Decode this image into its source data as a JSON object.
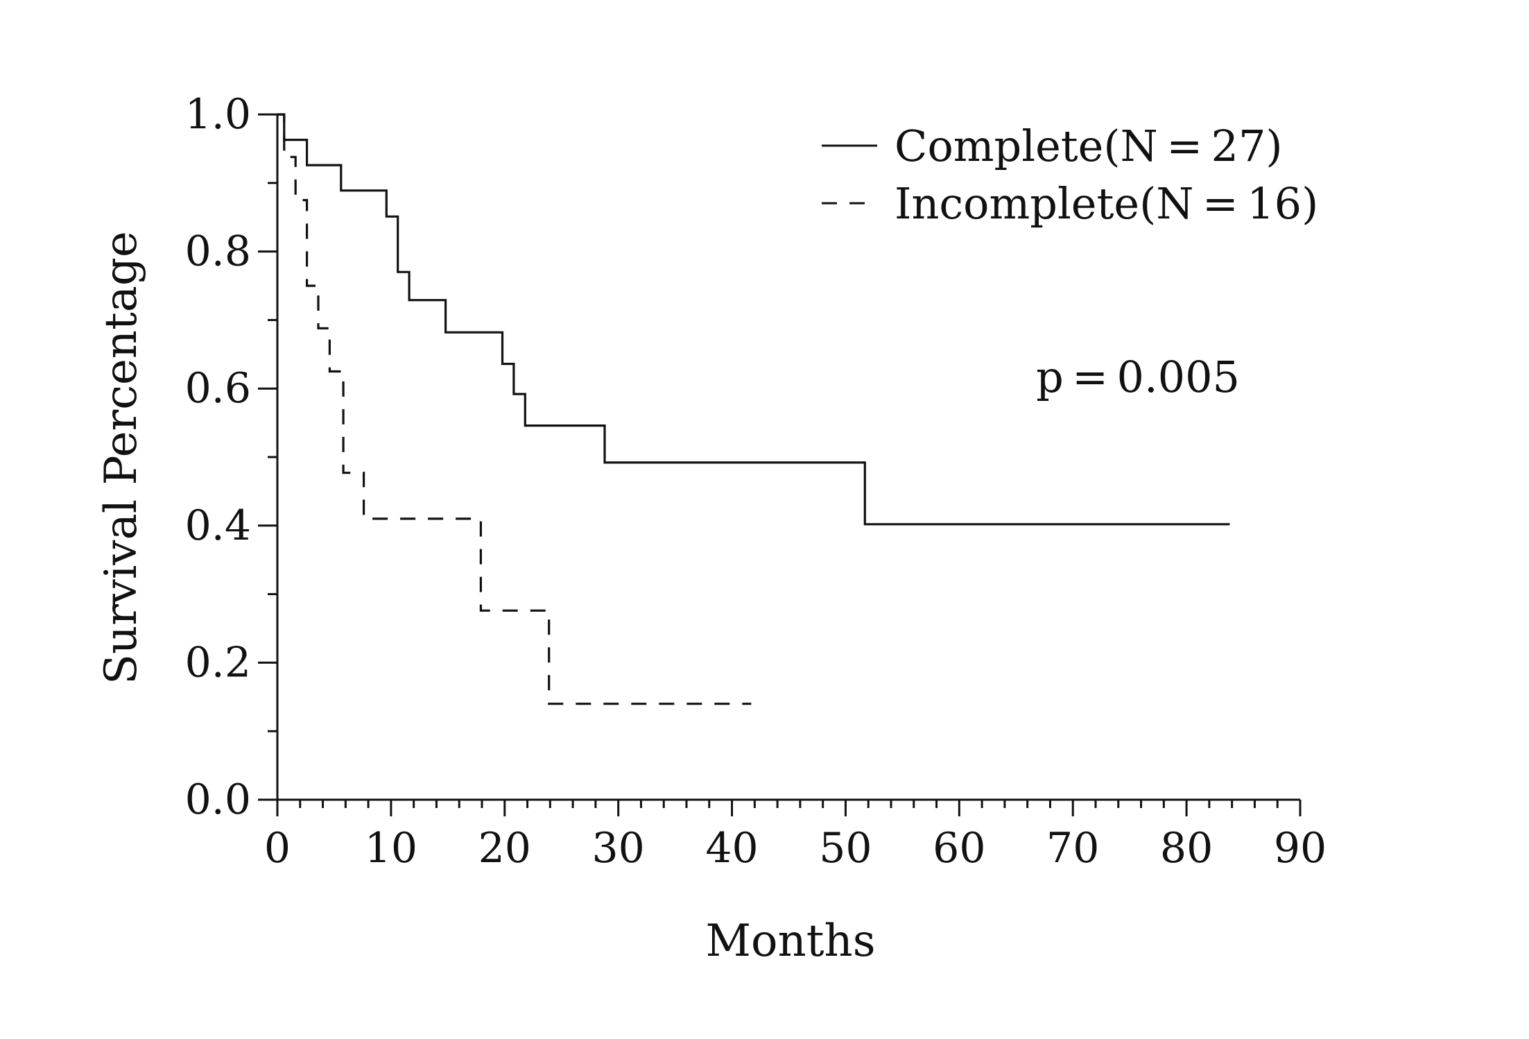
{
  "chart_data": {
    "type": "line",
    "style": "kaplan-meier step plot",
    "xlabel": "Months",
    "ylabel": "Survival Percentage",
    "xlim": [
      0,
      90
    ],
    "ylim": [
      0.0,
      1.0
    ],
    "x_ticks": [
      "0",
      "10",
      "20",
      "30",
      "40",
      "50",
      "60",
      "70",
      "80",
      "90"
    ],
    "y_ticks": [
      "0.0",
      "0.2",
      "0.4",
      "0.6",
      "0.8",
      "1.0"
    ],
    "grid": false,
    "legend_position": "top-right",
    "annotation": "p = 0.005",
    "colors": {
      "line": "#111111",
      "background": "#ffffff"
    },
    "series": [
      {
        "name": "Complete(N = 27)",
        "line_style": "solid",
        "steps": [
          [
            0,
            1.0
          ],
          [
            0.6,
            1.0
          ],
          [
            0.6,
            0.963
          ],
          [
            2.6,
            0.963
          ],
          [
            2.6,
            0.926
          ],
          [
            5.6,
            0.926
          ],
          [
            5.6,
            0.889
          ],
          [
            9.6,
            0.889
          ],
          [
            9.6,
            0.851
          ],
          [
            10.6,
            0.851
          ],
          [
            10.6,
            0.77
          ],
          [
            11.6,
            0.77
          ],
          [
            11.6,
            0.729
          ],
          [
            14.8,
            0.729
          ],
          [
            14.8,
            0.682
          ],
          [
            19.8,
            0.682
          ],
          [
            19.8,
            0.636
          ],
          [
            20.8,
            0.636
          ],
          [
            20.8,
            0.592
          ],
          [
            21.8,
            0.592
          ],
          [
            21.8,
            0.546
          ],
          [
            28.8,
            0.546
          ],
          [
            28.8,
            0.492
          ],
          [
            51.7,
            0.492
          ],
          [
            51.7,
            0.402
          ],
          [
            83.8,
            0.402
          ]
        ]
      },
      {
        "name": "Incomplete(N = 16)",
        "line_style": "dashed",
        "steps": [
          [
            0,
            1.0
          ],
          [
            0.6,
            1.0
          ],
          [
            0.6,
            0.938
          ],
          [
            1.6,
            0.938
          ],
          [
            1.6,
            0.875
          ],
          [
            2.6,
            0.875
          ],
          [
            2.6,
            0.75
          ],
          [
            3.6,
            0.75
          ],
          [
            3.6,
            0.688
          ],
          [
            4.6,
            0.688
          ],
          [
            4.6,
            0.625
          ],
          [
            5.8,
            0.625
          ],
          [
            5.8,
            0.477
          ],
          [
            7.6,
            0.477
          ],
          [
            7.6,
            0.41
          ],
          [
            17.9,
            0.41
          ],
          [
            17.9,
            0.276
          ],
          [
            23.9,
            0.276
          ],
          [
            23.9,
            0.14
          ],
          [
            41.7,
            0.14
          ]
        ]
      }
    ]
  }
}
